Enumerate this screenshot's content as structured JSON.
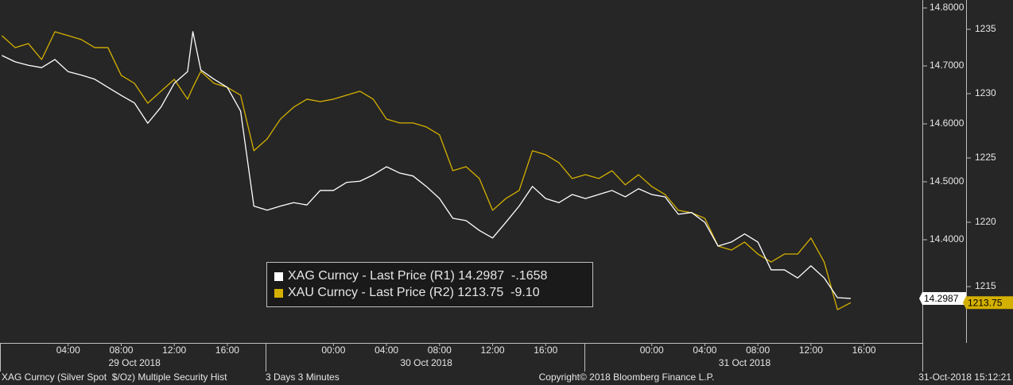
{
  "chart_data": {
    "type": "line",
    "x": [
      -1,
      0,
      1,
      2,
      3,
      4,
      5,
      6,
      7,
      8,
      9,
      10,
      11,
      12,
      13,
      13.4,
      14,
      15,
      16,
      17,
      18,
      19,
      20,
      21,
      22,
      23,
      24,
      25,
      26,
      27,
      28,
      29,
      30,
      31,
      32,
      33,
      34,
      35,
      36,
      37,
      38,
      39,
      40,
      41,
      42,
      43,
      44,
      45,
      46,
      47,
      48,
      49,
      50,
      51,
      52,
      53,
      54,
      55,
      56,
      57,
      58,
      59,
      60,
      61,
      62,
      63
    ],
    "xlim": [
      -1.14,
      68.4
    ],
    "xticks": [
      {
        "value": 4,
        "label": "04:00"
      },
      {
        "value": 8,
        "label": "08:00"
      },
      {
        "value": 12,
        "label": "12:00"
      },
      {
        "value": 16,
        "label": "16:00"
      },
      {
        "value": 24,
        "label": "00:00"
      },
      {
        "value": 28,
        "label": "04:00"
      },
      {
        "value": 32,
        "label": "08:00"
      },
      {
        "value": 36,
        "label": "12:00"
      },
      {
        "value": 40,
        "label": "16:00"
      },
      {
        "value": 48,
        "label": "00:00"
      },
      {
        "value": 52,
        "label": "04:00"
      },
      {
        "value": 56,
        "label": "08:00"
      },
      {
        "value": 60,
        "label": "12:00"
      },
      {
        "value": 64,
        "label": "16:00"
      }
    ],
    "date_labels": [
      {
        "value": 9,
        "label": "29 Oct 2018"
      },
      {
        "value": 31,
        "label": "30 Oct 2018"
      },
      {
        "value": 55,
        "label": "31 Oct 2018"
      }
    ],
    "ylim": [
      14.2219,
      14.8137
    ],
    "yticks": [
      {
        "value": 14.8,
        "label": "14.8000"
      },
      {
        "value": 14.7,
        "label": "14.7000"
      },
      {
        "value": 14.6,
        "label": "14.6000"
      },
      {
        "value": 14.5,
        "label": "14.5000"
      },
      {
        "value": 14.4,
        "label": "14.4000"
      }
    ],
    "y2lim": [
      1210.62,
      1237.28
    ],
    "y2ticks": [
      {
        "value": 1235,
        "label": "1235"
      },
      {
        "value": 1230,
        "label": "1230"
      },
      {
        "value": 1225,
        "label": "1225"
      },
      {
        "value": 1220,
        "label": "1220"
      },
      {
        "value": 1215,
        "label": "1215"
      }
    ],
    "series": [
      {
        "name": "XAG Curncy - Last Price (R1)",
        "color": "#ffffff",
        "axis": "y",
        "last": 14.2987,
        "change": "-.1658",
        "values": [
          14.718,
          14.707,
          14.701,
          14.697,
          14.711,
          14.69,
          14.684,
          14.677,
          14.663,
          14.649,
          14.636,
          14.601,
          14.629,
          14.67,
          14.69,
          14.759,
          14.693,
          14.677,
          14.663,
          14.622,
          14.458,
          14.451,
          14.458,
          14.464,
          14.46,
          14.485,
          14.485,
          14.499,
          14.501,
          14.512,
          14.526,
          14.515,
          14.51,
          14.492,
          14.471,
          14.437,
          14.433,
          14.416,
          14.403,
          14.43,
          14.458,
          14.492,
          14.471,
          14.464,
          14.478,
          14.471,
          14.478,
          14.485,
          14.474,
          14.488,
          14.478,
          14.474,
          14.444,
          14.447,
          14.43,
          14.389,
          14.396,
          14.41,
          14.396,
          14.348,
          14.348,
          14.334,
          14.355,
          14.334,
          14.3,
          14.2987
        ]
      },
      {
        "name": "XAU Curncy - Last Price (R2)",
        "color": "#d4b000",
        "axis": "y2",
        "last": 1213.75,
        "change": "-9.10",
        "values": [
          1234.51,
          1233.58,
          1233.89,
          1232.65,
          1234.81,
          1234.51,
          1234.2,
          1233.58,
          1233.58,
          1231.42,
          1230.8,
          1229.26,
          1230.19,
          1231.11,
          1229.57,
          1230.49,
          1231.73,
          1230.8,
          1230.49,
          1229.88,
          1225.56,
          1226.48,
          1228.02,
          1228.95,
          1229.57,
          1229.38,
          1229.57,
          1229.88,
          1230.19,
          1229.57,
          1228.02,
          1227.72,
          1227.72,
          1227.41,
          1226.79,
          1224.01,
          1224.32,
          1223.4,
          1220.93,
          1221.85,
          1222.47,
          1225.56,
          1225.25,
          1224.63,
          1223.4,
          1223.7,
          1223.4,
          1224.01,
          1222.91,
          1223.7,
          1222.78,
          1222.16,
          1220.93,
          1220.74,
          1220.31,
          1218.15,
          1217.84,
          1218.46,
          1217.53,
          1216.91,
          1217.53,
          1217.53,
          1218.77,
          1216.91,
          1213.21,
          1213.75
        ]
      }
    ],
    "footer": {
      "left": "XAG Curncy (Silver Spot  $/Oz) Multiple Security Hist",
      "middle": "3 Days 3 Minutes",
      "center": "Copyright© 2018 Bloomberg Finance L.P.",
      "right": "31-Oct-2018 15:12:21"
    }
  }
}
